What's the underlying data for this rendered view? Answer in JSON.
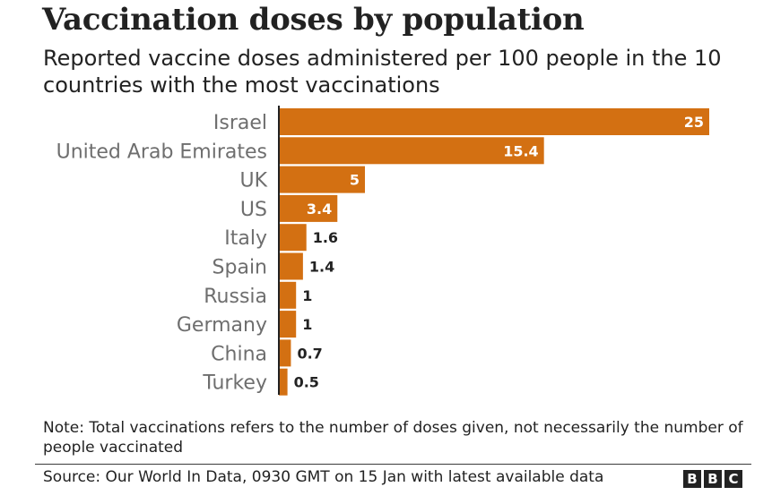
{
  "title": "Vaccination doses by population",
  "subtitle": "Reported vaccine doses administered per 100 people in the 10 countries with the most vaccinations",
  "note": "Note: Total vaccinations refers to the number of doses given, not necessarily the number of people vaccinated",
  "source": "Source: Our World In Data, 0930 GMT on 15 Jan with latest available data",
  "logo": {
    "letters": [
      "B",
      "B",
      "C"
    ]
  },
  "colors": {
    "bar": "#d37012",
    "axis": "#222222",
    "category_label": "#6e6e6e",
    "value_label_inside": "#ffffff",
    "value_label_outside": "#222222"
  },
  "chart_data": {
    "type": "bar",
    "orientation": "horizontal",
    "categories": [
      "Israel",
      "United Arab Emirates",
      "UK",
      "US",
      "Italy",
      "Spain",
      "Russia",
      "Germany",
      "China",
      "Turkey"
    ],
    "values": [
      25,
      15.4,
      5,
      3.4,
      1.6,
      1.4,
      1,
      1,
      0.7,
      0.5
    ],
    "value_labels": [
      "25",
      "15.4",
      "5",
      "3.4",
      "1.6",
      "1.4",
      "1",
      "1",
      "0.7",
      "0.5"
    ],
    "xlim": [
      0,
      25
    ],
    "grid": false,
    "legend": "none",
    "data_labels": true
  }
}
